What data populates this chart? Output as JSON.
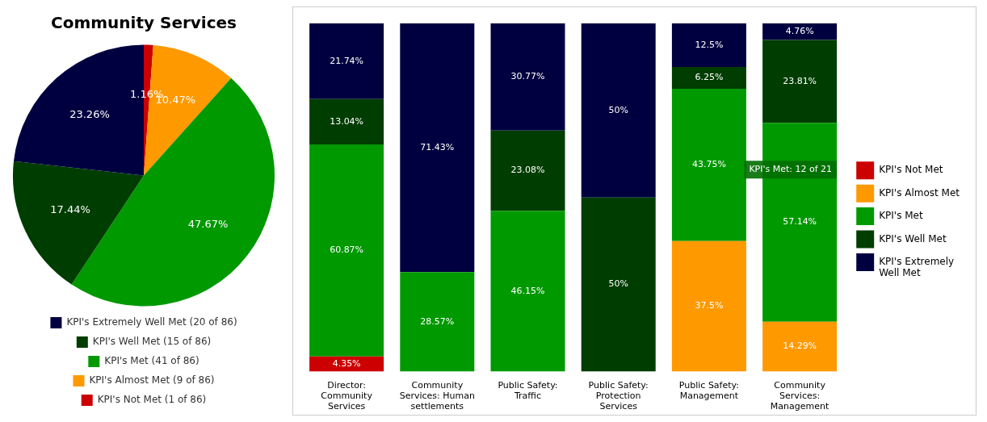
{
  "chart_data": [
    {
      "type": "pie",
      "title": "Community Services",
      "categories": [
        "KPI's Not Met (1 of 86)",
        "KPI's Almost Met (9 of 86)",
        "KPI's Met (41 of 86)",
        "KPI's Well Met (15 of 86)",
        "KPI's Extremely Well Met (20 of 86)"
      ],
      "values": [
        1.16,
        10.47,
        47.67,
        17.44,
        23.26
      ],
      "colors": [
        "#cc0000",
        "#ff9900",
        "#009900",
        "#003d00",
        "#000040"
      ],
      "value_labels": [
        "1.16%",
        "10.47%",
        "47.67%",
        "17.44%",
        "23.26%"
      ],
      "legend": "bottom"
    },
    {
      "type": "bar",
      "stacked": true,
      "categories": [
        "Director: Community Services",
        "Community Services: Human settlements",
        "Public Safety: Traffic",
        "Public Safety: Protection Services",
        "Public Safety: Management",
        "Community Services: Management"
      ],
      "ylim": [
        0,
        100
      ],
      "legend": "right",
      "grid": false,
      "series": [
        {
          "name": "KPI's Not Met",
          "color": "#cc0000",
          "values": [
            4.35,
            null,
            null,
            null,
            null,
            null
          ],
          "value_labels": [
            "4.35%",
            null,
            null,
            null,
            null,
            null
          ]
        },
        {
          "name": "KPI's Almost Met",
          "color": "#ff9900",
          "values": [
            null,
            null,
            null,
            null,
            37.5,
            14.29
          ],
          "value_labels": [
            null,
            null,
            null,
            null,
            "37.5%",
            "14.29%"
          ]
        },
        {
          "name": "KPI's Met",
          "color": "#009900",
          "values": [
            60.87,
            28.57,
            46.15,
            null,
            43.75,
            57.14
          ],
          "value_labels": [
            "60.87%",
            "28.57%",
            "46.15%",
            null,
            "43.75%",
            "57.14%"
          ]
        },
        {
          "name": "KPI's Well Met",
          "color": "#003d00",
          "values": [
            13.04,
            null,
            23.08,
            50,
            6.25,
            23.81
          ],
          "value_labels": [
            "13.04%",
            null,
            "23.08%",
            "50%",
            "6.25%",
            "23.81%"
          ]
        },
        {
          "name": "KPI's Extremely Well Met",
          "color": "#000040",
          "values": [
            21.74,
            71.43,
            30.77,
            50,
            12.5,
            4.76
          ],
          "value_labels": [
            "21.74%",
            "71.43%",
            "30.77%",
            "50%",
            "12.5%",
            "4.76%"
          ]
        }
      ],
      "annotations": [
        "KPI's Met: 12 of 21"
      ]
    }
  ]
}
